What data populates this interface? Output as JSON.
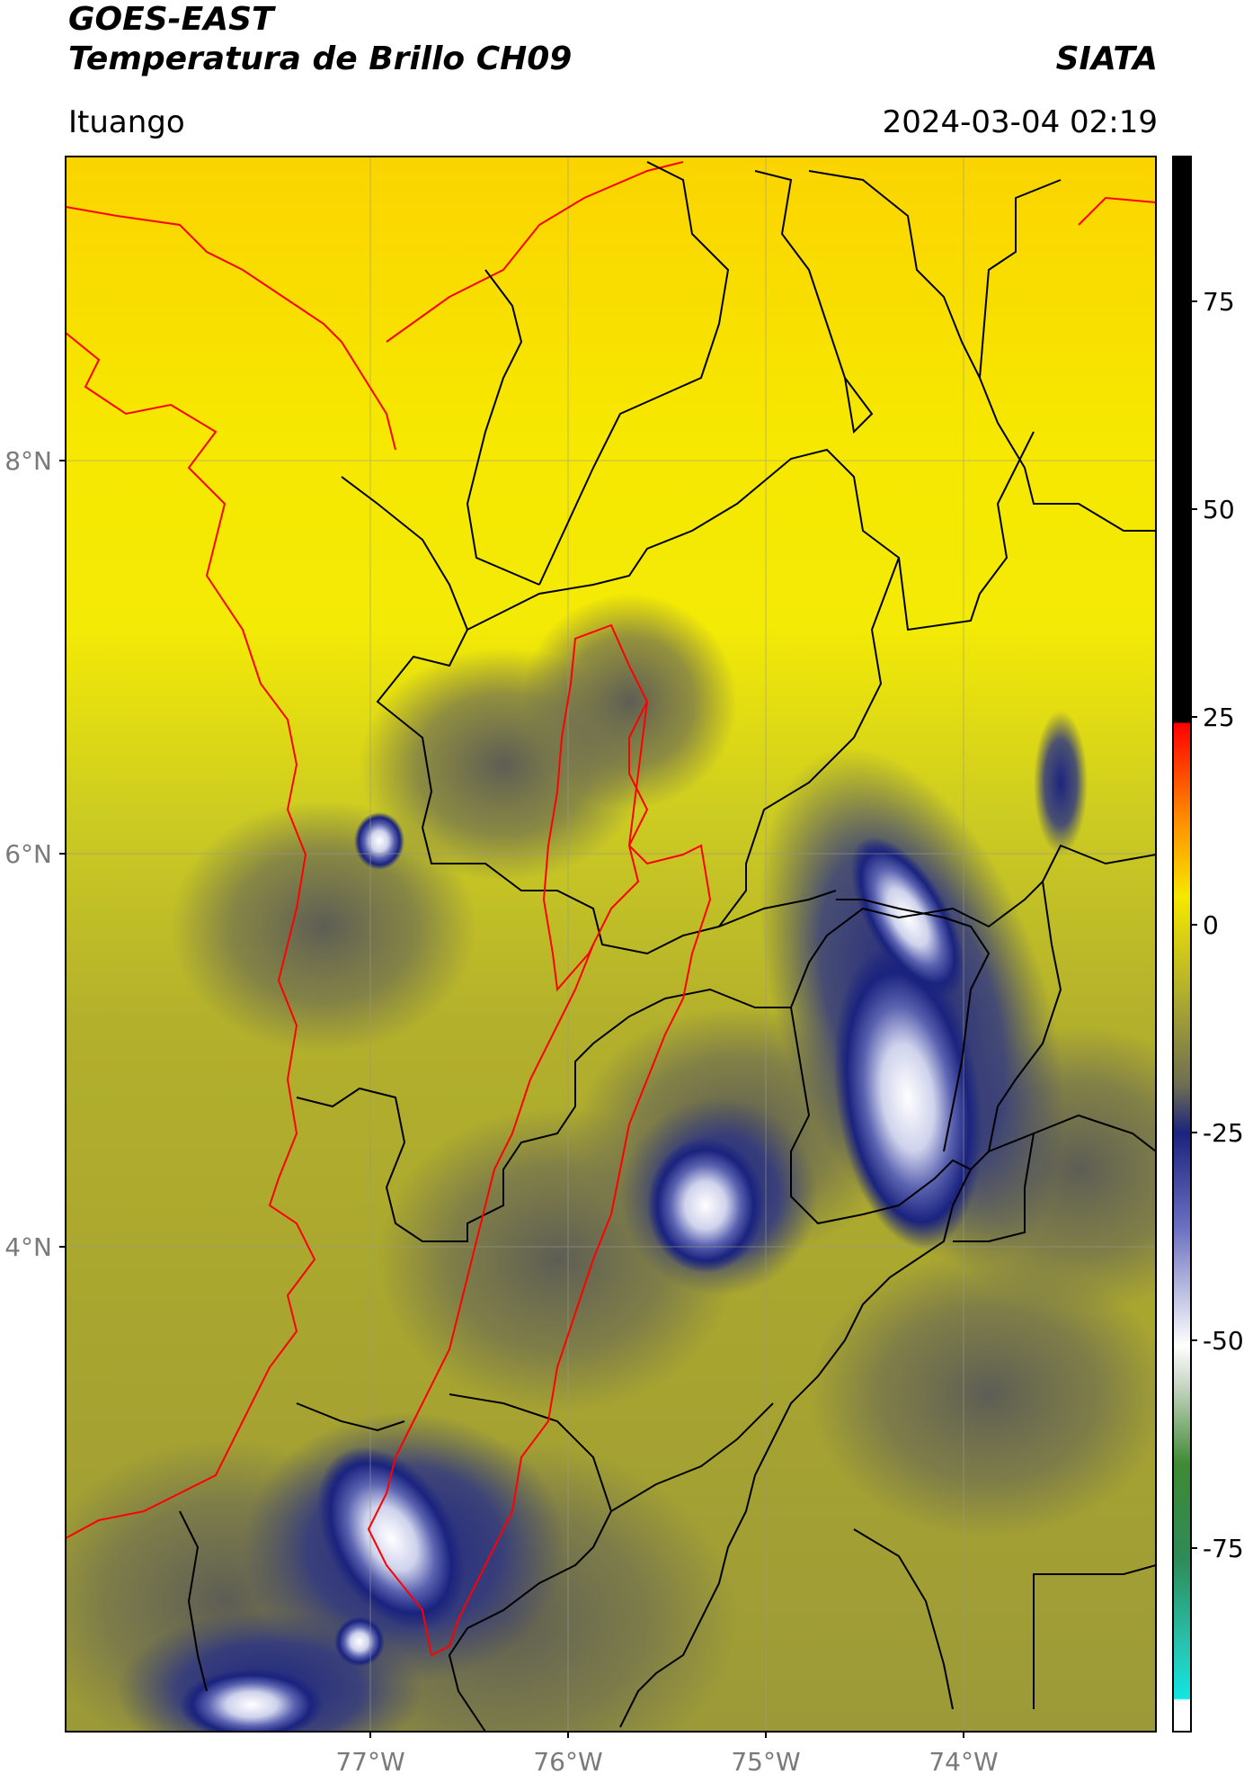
{
  "header": {
    "satellite": "GOES-EAST",
    "product": "Temperatura de Brillo CH09",
    "agency": "SIATA",
    "region": "Ituango",
    "timestamp": "2024-03-04 02:19"
  },
  "map": {
    "lat_ticks": [
      {
        "label": "8°N"
      },
      {
        "label": "6°N"
      },
      {
        "label": "4°N"
      }
    ],
    "lon_ticks": [
      {
        "label": "77°W"
      },
      {
        "label": "76°W"
      },
      {
        "label": "75°W"
      },
      {
        "label": "74°W"
      }
    ],
    "colors": {
      "warm": "#f6e800",
      "cool": "#a8a530",
      "cold": "#6d6d52",
      "cloud_deep": "#1a237e",
      "cloud_top": "#ffffff",
      "basin_outline": "#ff0000",
      "boundaries": "#000000"
    }
  },
  "colorbar": {
    "ticks": [
      "75",
      "50",
      "25",
      "0",
      "-25",
      "-50",
      "-75"
    ]
  }
}
